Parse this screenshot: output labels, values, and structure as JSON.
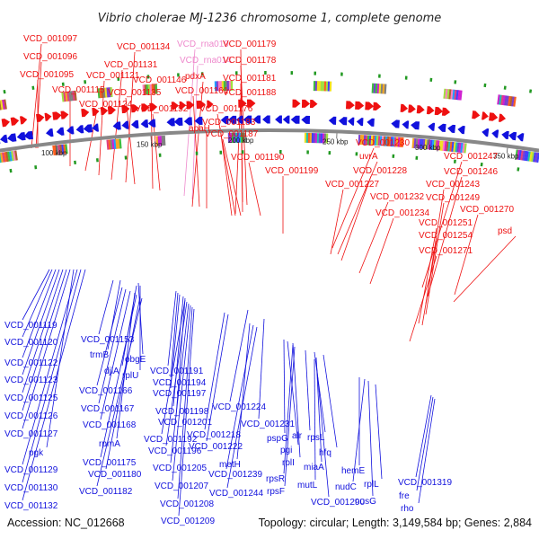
{
  "title": "Vibrio cholerae MJ-1236 chromosome 1, complete genome",
  "footer": {
    "accession": "Accession: NC_012668",
    "summary": "Topology: circular; Length: 3,149,584 bp; Genes: 2,884"
  },
  "colors": {
    "forward": "#ee1111",
    "reverse": "#1111dd",
    "rna": "#ee88cc",
    "backbone": "#888888",
    "tick_mark": "#229922"
  },
  "ticks": [
    "100 kbp",
    "150 kbp",
    "200 kbp",
    "250 kbp",
    "300 kbp",
    "350 kbp"
  ],
  "top_labels": [
    {
      "text": "VCD_001097",
      "strand": "forward"
    },
    {
      "text": "VCD_001096",
      "strand": "forward"
    },
    {
      "text": "VCD_001095",
      "strand": "forward"
    },
    {
      "text": "VCD_001115",
      "strand": "forward"
    },
    {
      "text": "VCD_001124",
      "strand": "forward"
    },
    {
      "text": "VCD_001121",
      "strand": "forward"
    },
    {
      "text": "VCD_001131",
      "strand": "forward"
    },
    {
      "text": "VCD_001134",
      "strand": "forward"
    },
    {
      "text": "VCD_001135",
      "strand": "forward"
    },
    {
      "text": "VCD_001146",
      "strand": "forward"
    },
    {
      "text": "VCD_001152",
      "strand": "forward"
    },
    {
      "text": "VCD_rna019",
      "strand": "rna"
    },
    {
      "text": "VCD_rna014",
      "strand": "rna"
    },
    {
      "text": "pdxA",
      "strand": "forward"
    },
    {
      "text": "VCD_001161",
      "strand": "forward"
    },
    {
      "text": "apaH",
      "strand": "forward"
    },
    {
      "text": "VCD_001179",
      "strand": "forward"
    },
    {
      "text": "VCD_001178",
      "strand": "forward"
    },
    {
      "text": "VCD_001181",
      "strand": "forward"
    },
    {
      "text": "VCD_001188",
      "strand": "forward"
    },
    {
      "text": "VCD_001176",
      "strand": "forward"
    },
    {
      "text": "VCD_001183",
      "strand": "forward"
    },
    {
      "text": "VCD_001187",
      "strand": "forward"
    },
    {
      "text": "VCD_001190",
      "strand": "forward"
    },
    {
      "text": "VCD_001199",
      "strand": "forward"
    },
    {
      "text": "VCD_001230",
      "strand": "forward"
    },
    {
      "text": "uvrA",
      "strand": "forward"
    },
    {
      "text": "VCD_001228",
      "strand": "forward"
    },
    {
      "text": "VCD_001227",
      "strand": "forward"
    },
    {
      "text": "VCD_001232",
      "strand": "forward"
    },
    {
      "text": "VCD_001234",
      "strand": "forward"
    },
    {
      "text": "VCD_001247",
      "strand": "forward"
    },
    {
      "text": "VCD_001246",
      "strand": "forward"
    },
    {
      "text": "VCD_001243",
      "strand": "forward"
    },
    {
      "text": "VCD_001249",
      "strand": "forward"
    },
    {
      "text": "VCD_001270",
      "strand": "forward"
    },
    {
      "text": "VCD_001251",
      "strand": "forward"
    },
    {
      "text": "VCD_001254",
      "strand": "forward"
    },
    {
      "text": "psd",
      "strand": "forward"
    },
    {
      "text": "VCD_001271",
      "strand": "forward"
    }
  ],
  "bottom_labels": [
    {
      "text": "VCD_001119",
      "strand": "reverse"
    },
    {
      "text": "VCD_001120",
      "strand": "reverse"
    },
    {
      "text": "VCD_001122",
      "strand": "reverse"
    },
    {
      "text": "VCD_001123",
      "strand": "reverse"
    },
    {
      "text": "VCD_001125",
      "strand": "reverse"
    },
    {
      "text": "VCD_001126",
      "strand": "reverse"
    },
    {
      "text": "VCD_001127",
      "strand": "reverse"
    },
    {
      "text": "pgk",
      "strand": "reverse"
    },
    {
      "text": "VCD_001129",
      "strand": "reverse"
    },
    {
      "text": "VCD_001130",
      "strand": "reverse"
    },
    {
      "text": "VCD_001132",
      "strand": "reverse"
    },
    {
      "text": "VCD_001153",
      "strand": "reverse"
    },
    {
      "text": "trmB",
      "strand": "reverse"
    },
    {
      "text": "obgE",
      "strand": "reverse"
    },
    {
      "text": "djlA",
      "strand": "reverse"
    },
    {
      "text": "rplU",
      "strand": "reverse"
    },
    {
      "text": "VCD_001166",
      "strand": "reverse"
    },
    {
      "text": "VCD_001167",
      "strand": "reverse"
    },
    {
      "text": "VCD_001168",
      "strand": "reverse"
    },
    {
      "text": "rpmA",
      "strand": "reverse"
    },
    {
      "text": "VCD_001175",
      "strand": "reverse"
    },
    {
      "text": "VCD_001180",
      "strand": "reverse"
    },
    {
      "text": "VCD_001182",
      "strand": "reverse"
    },
    {
      "text": "VCD_001191",
      "strand": "reverse"
    },
    {
      "text": "VCD_001194",
      "strand": "reverse"
    },
    {
      "text": "VCD_001197",
      "strand": "reverse"
    },
    {
      "text": "VCD_001198",
      "strand": "reverse"
    },
    {
      "text": "VCD_001201",
      "strand": "reverse"
    },
    {
      "text": "VCD_001192",
      "strand": "reverse"
    },
    {
      "text": "VCD_001196",
      "strand": "reverse"
    },
    {
      "text": "VCD_001205",
      "strand": "reverse"
    },
    {
      "text": "VCD_001207",
      "strand": "reverse"
    },
    {
      "text": "VCD_001208",
      "strand": "reverse"
    },
    {
      "text": "VCD_001209",
      "strand": "reverse"
    },
    {
      "text": "VCD_001218",
      "strand": "reverse"
    },
    {
      "text": "VCD_001222",
      "strand": "reverse"
    },
    {
      "text": "VCD_001224",
      "strand": "reverse"
    },
    {
      "text": "VCD_001231",
      "strand": "reverse"
    },
    {
      "text": "metH",
      "strand": "reverse"
    },
    {
      "text": "VCD_001239",
      "strand": "reverse"
    },
    {
      "text": "VCD_001244",
      "strand": "reverse"
    },
    {
      "text": "pspG",
      "strand": "reverse"
    },
    {
      "text": "pgi",
      "strand": "reverse"
    },
    {
      "text": "rplI",
      "strand": "reverse"
    },
    {
      "text": "rpsR",
      "strand": "reverse"
    },
    {
      "text": "rpsF",
      "strand": "reverse"
    },
    {
      "text": "alr",
      "strand": "reverse"
    },
    {
      "text": "rpsL",
      "strand": "reverse"
    },
    {
      "text": "hfq",
      "strand": "reverse"
    },
    {
      "text": "miaA",
      "strand": "reverse"
    },
    {
      "text": "mutL",
      "strand": "reverse"
    },
    {
      "text": "VCD_001290",
      "strand": "reverse"
    },
    {
      "text": "hemE",
      "strand": "reverse"
    },
    {
      "text": "nudC",
      "strand": "reverse"
    },
    {
      "text": "nusG",
      "strand": "reverse"
    },
    {
      "text": "rplL",
      "strand": "reverse"
    },
    {
      "text": "VCD_001319",
      "strand": "reverse"
    },
    {
      "text": "fre",
      "strand": "reverse"
    },
    {
      "text": "rho",
      "strand": "reverse"
    }
  ]
}
